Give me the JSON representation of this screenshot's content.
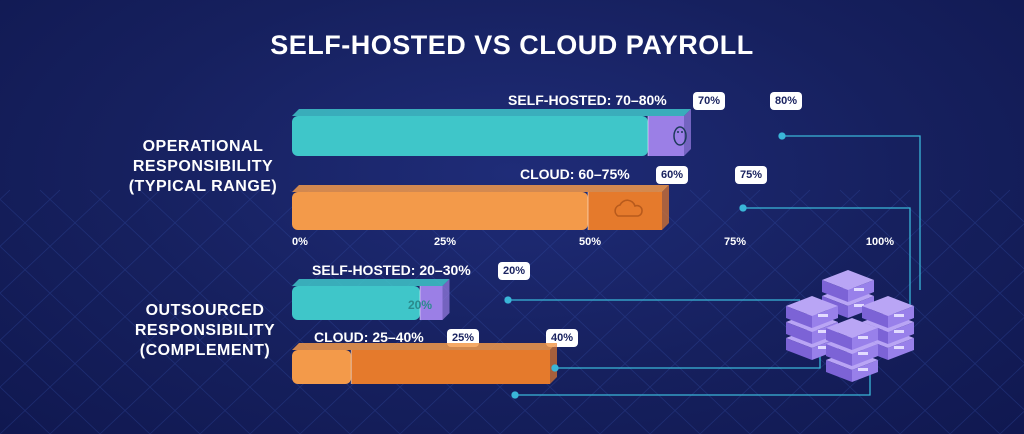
{
  "title": "SELF-HOSTED VS CLOUD PAYROLL",
  "colors": {
    "background": "#16205e",
    "self_hosted": "#3fc6c9",
    "self_hosted_range": "#9b7fe6",
    "cloud": "#f39a4a",
    "cloud_range": "#e57a2c",
    "connector": "#3ab6d8"
  },
  "groups": {
    "operational": {
      "label_lines": [
        "OPERATIONAL",
        "RESPONSIBILITY",
        "(TYPICAL RANGE)"
      ],
      "self_hosted_label": "SELF-HOSTED: 70–80%",
      "cloud_label": "CLOUD: 60–75%"
    },
    "outsourced": {
      "label_lines": [
        "OUTSOURCED",
        "RESPONSIBILITY",
        "(COMPLEMENT)"
      ],
      "self_hosted_label": "SELF-HOSTED: 20–30%",
      "cloud_label": "CLOUD: 25–40%",
      "self_hosted_inner_label": "20%"
    }
  },
  "chart_data": {
    "type": "bar",
    "title": "SELF-HOSTED VS CLOUD PAYROLL",
    "orientation": "horizontal",
    "x_ticks": [
      "0%",
      "25%",
      "50%",
      "75%",
      "100%"
    ],
    "xlim": [
      0,
      100
    ],
    "bars": [
      {
        "group": "Operational Responsibility (Typical Range)",
        "series": "Self-hosted",
        "low": 70,
        "high": 80,
        "low_label": "70%",
        "high_label": "80%",
        "icon": "linux-penguin-icon"
      },
      {
        "group": "Operational Responsibility (Typical Range)",
        "series": "Cloud",
        "low": 60,
        "high": 75,
        "low_label": "60%",
        "high_label": "75%",
        "icon": "cloud-icon"
      },
      {
        "group": "Outsourced Responsibility (Complement)",
        "series": "Self-hosted",
        "low": 20,
        "high": 30,
        "low_label": "20%",
        "high_label": "30%"
      },
      {
        "group": "Outsourced Responsibility (Complement)",
        "series": "Cloud",
        "low": 25,
        "high": 40,
        "low_label": "25%",
        "high_label": "40%"
      }
    ],
    "decoration": "server-stack-icon"
  }
}
